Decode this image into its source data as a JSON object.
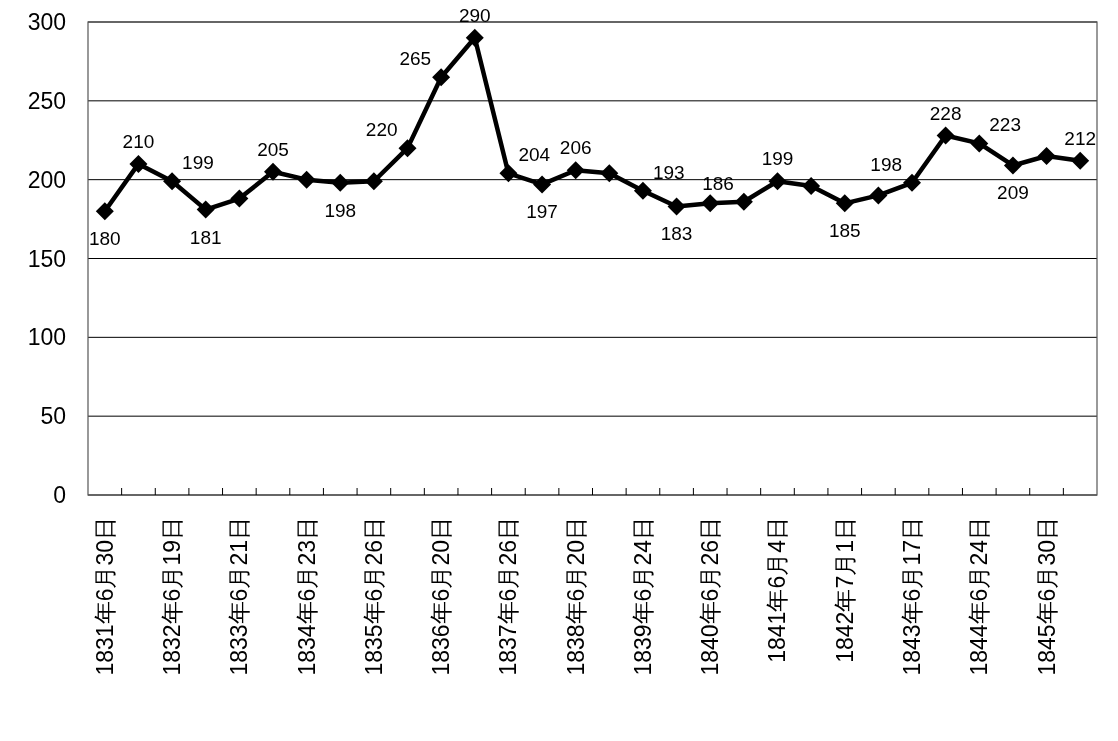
{
  "chart_data": {
    "type": "line",
    "categories": [
      "1831年6月30日",
      null,
      "1832年6月19日",
      null,
      "1833年6月21日",
      null,
      "1834年6月23日",
      null,
      "1835年6月26日",
      null,
      "1836年6月20日",
      null,
      "1837年6月26日",
      null,
      "1838年6月20日",
      null,
      "1839年6月24日",
      null,
      "1840年6月26日",
      null,
      "1841年6月4日",
      null,
      "1842年7月1日",
      null,
      "1843年6月17日",
      null,
      "1844年6月24日",
      null,
      "1845年6月30日",
      null
    ],
    "values": [
      180,
      210,
      199,
      181,
      188,
      205,
      200,
      198,
      199,
      220,
      265,
      290,
      204,
      197,
      206,
      204,
      193,
      183,
      185,
      186,
      199,
      196,
      185,
      190,
      198,
      228,
      223,
      209,
      215,
      212
    ],
    "value_labels": [
      "180",
      "210",
      "199",
      "181",
      null,
      "205",
      null,
      "198",
      null,
      "220",
      "265",
      "290",
      "204",
      "197",
      "206",
      null,
      "193",
      "183",
      null,
      "186",
      "199",
      null,
      "185",
      null,
      "198",
      "228",
      "223",
      "209",
      null,
      "212"
    ],
    "color": "#000000",
    "marker": "diamond",
    "ylim": [
      0,
      300
    ],
    "yticks": [
      0,
      50,
      100,
      150,
      200,
      250,
      300
    ],
    "grid": "y"
  }
}
